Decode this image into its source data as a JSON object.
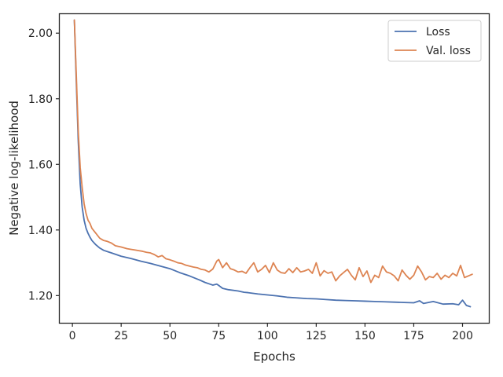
{
  "chart_data": {
    "type": "line",
    "title": "",
    "xlabel": "Epochs",
    "ylabel": "Negative log-likelihood",
    "xlim": [
      -6.5,
      213.5
    ],
    "ylim": [
      1.117,
      2.058
    ],
    "xticks": [
      0,
      25,
      50,
      75,
      100,
      125,
      150,
      175,
      200
    ],
    "xtick_labels": [
      "0",
      "25",
      "50",
      "75",
      "100",
      "125",
      "150",
      "175",
      "200"
    ],
    "yticks": [
      1.2,
      1.4,
      1.6,
      1.8,
      2.0
    ],
    "ytick_labels": [
      "1.20",
      "1.40",
      "1.60",
      "1.80",
      "2.00"
    ],
    "grid": false,
    "legend_position": "top-right",
    "series": [
      {
        "name": "Loss",
        "color": "#4c72b0",
        "x": [
          1,
          2,
          3,
          4,
          5,
          6,
          7,
          8,
          9,
          10,
          12,
          14,
          16,
          18,
          20,
          25,
          30,
          35,
          40,
          45,
          50,
          55,
          60,
          65,
          68,
          70,
          72,
          74,
          75,
          77,
          80,
          85,
          88,
          90,
          95,
          100,
          105,
          110,
          115,
          120,
          125,
          130,
          135,
          140,
          145,
          150,
          155,
          160,
          165,
          170,
          175,
          178,
          180,
          185,
          190,
          195,
          198,
          200,
          202,
          204
        ],
        "values": [
          2.04,
          1.85,
          1.67,
          1.54,
          1.47,
          1.43,
          1.405,
          1.39,
          1.378,
          1.368,
          1.355,
          1.345,
          1.338,
          1.334,
          1.33,
          1.32,
          1.313,
          1.305,
          1.298,
          1.29,
          1.282,
          1.27,
          1.26,
          1.248,
          1.24,
          1.236,
          1.232,
          1.235,
          1.231,
          1.222,
          1.218,
          1.214,
          1.21,
          1.209,
          1.205,
          1.202,
          1.199,
          1.195,
          1.193,
          1.191,
          1.19,
          1.188,
          1.186,
          1.185,
          1.184,
          1.183,
          1.182,
          1.181,
          1.18,
          1.179,
          1.178,
          1.184,
          1.176,
          1.182,
          1.174,
          1.175,
          1.172,
          1.186,
          1.17,
          1.166
        ]
      },
      {
        "name": "Val. loss",
        "color": "#dd8452",
        "x": [
          1,
          2,
          3,
          4,
          5,
          6,
          7,
          8,
          9,
          10,
          12,
          14,
          16,
          18,
          20,
          22,
          25,
          28,
          30,
          32,
          34,
          36,
          38,
          40,
          42,
          44,
          46,
          48,
          50,
          52,
          54,
          56,
          58,
          60,
          62,
          64,
          66,
          68,
          70,
          72,
          74,
          75,
          77,
          79,
          81,
          83,
          85,
          87,
          89,
          91,
          93,
          95,
          97,
          99,
          101,
          103,
          105,
          107,
          109,
          111,
          113,
          115,
          117,
          119,
          121,
          123,
          125,
          127,
          129,
          131,
          133,
          135,
          137,
          139,
          141,
          143,
          145,
          147,
          149,
          151,
          153,
          155,
          157,
          159,
          161,
          163,
          165,
          167,
          169,
          171,
          173,
          175,
          177,
          179,
          181,
          183,
          185,
          187,
          189,
          191,
          193,
          195,
          197,
          199,
          201,
          203,
          205
        ],
        "values": [
          2.04,
          1.87,
          1.7,
          1.59,
          1.53,
          1.48,
          1.45,
          1.43,
          1.42,
          1.405,
          1.39,
          1.375,
          1.368,
          1.365,
          1.36,
          1.352,
          1.348,
          1.343,
          1.341,
          1.339,
          1.337,
          1.335,
          1.332,
          1.33,
          1.325,
          1.318,
          1.322,
          1.312,
          1.309,
          1.305,
          1.3,
          1.298,
          1.293,
          1.29,
          1.287,
          1.285,
          1.28,
          1.278,
          1.272,
          1.281,
          1.305,
          1.31,
          1.285,
          1.3,
          1.282,
          1.278,
          1.272,
          1.274,
          1.268,
          1.285,
          1.3,
          1.272,
          1.28,
          1.292,
          1.27,
          1.3,
          1.278,
          1.27,
          1.268,
          1.282,
          1.27,
          1.285,
          1.272,
          1.275,
          1.28,
          1.268,
          1.3,
          1.26,
          1.276,
          1.268,
          1.272,
          1.245,
          1.26,
          1.27,
          1.28,
          1.262,
          1.248,
          1.285,
          1.258,
          1.275,
          1.24,
          1.262,
          1.255,
          1.29,
          1.272,
          1.268,
          1.26,
          1.245,
          1.278,
          1.262,
          1.25,
          1.262,
          1.29,
          1.272,
          1.248,
          1.258,
          1.255,
          1.268,
          1.25,
          1.262,
          1.255,
          1.268,
          1.26,
          1.292,
          1.255,
          1.26,
          1.265
        ]
      }
    ]
  }
}
